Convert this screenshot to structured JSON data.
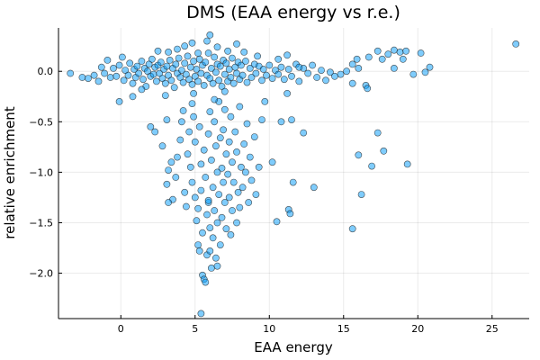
{
  "chart_data": {
    "type": "scatter",
    "title": "DMS (EAA energy vs r.e.)",
    "xlabel": "EAA energy",
    "ylabel": "relative enrichment",
    "xlim": [
      -4.2,
      27.5
    ],
    "ylim": [
      -2.45,
      0.43
    ],
    "xticks": [
      0,
      5,
      10,
      15,
      20,
      25
    ],
    "xtick_labels": [
      "0",
      "5",
      "10",
      "15",
      "20",
      "25"
    ],
    "yticks": [
      0.0,
      -0.5,
      -1.0,
      -1.5,
      -2.0
    ],
    "ytick_labels": [
      "0.0",
      "−0.5",
      "−1.0",
      "−1.5",
      "−2.0"
    ],
    "grid": true,
    "legend": "none",
    "point_color": "#009AFA",
    "point_stroke": "#1a1a1a",
    "series": [
      {
        "points": [
          [
            -3.4,
            -0.02
          ],
          [
            -2.6,
            -0.06
          ],
          [
            -2.2,
            -0.07
          ],
          [
            -1.8,
            -0.04
          ],
          [
            -1.5,
            -0.1
          ],
          [
            -1.3,
            0.04
          ],
          [
            -1.1,
            -0.02
          ],
          [
            -0.9,
            0.11
          ],
          [
            -0.7,
            -0.06
          ],
          [
            -0.5,
            0.03
          ],
          [
            -0.3,
            -0.05
          ],
          [
            -0.1,
            0.06
          ],
          [
            0.1,
            0.14
          ],
          [
            0.2,
            -0.09
          ],
          [
            0.3,
            0.01
          ],
          [
            0.5,
            -0.04
          ],
          [
            0.6,
            0.08
          ],
          [
            0.8,
            -0.12
          ],
          [
            0.9,
            0.02
          ],
          [
            1.0,
            -0.06
          ],
          [
            1.1,
            0.05
          ],
          [
            1.2,
            -0.02
          ],
          [
            1.4,
            0.1
          ],
          [
            1.5,
            -0.08
          ],
          [
            1.6,
            0.03
          ],
          [
            1.7,
            -0.15
          ],
          [
            1.8,
            0.0
          ],
          [
            1.9,
            0.07
          ],
          [
            2.0,
            -0.05
          ],
          [
            2.1,
            0.12
          ],
          [
            2.2,
            -0.03
          ],
          [
            2.3,
            0.04
          ],
          [
            2.4,
            -0.1
          ],
          [
            2.5,
            0.06
          ],
          [
            2.6,
            -0.02
          ],
          [
            2.7,
            0.09
          ],
          [
            2.8,
            -0.07
          ],
          [
            2.9,
            0.02
          ],
          [
            3.0,
            -0.12
          ],
          [
            3.1,
            0.05
          ],
          [
            3.2,
            -0.04
          ],
          [
            3.3,
            0.11
          ],
          [
            3.4,
            -0.09
          ],
          [
            3.5,
            0.03
          ],
          [
            3.6,
            -0.16
          ],
          [
            3.7,
            0.07
          ],
          [
            3.8,
            -0.02
          ],
          [
            3.9,
            0.13
          ],
          [
            4.0,
            -0.06
          ],
          [
            4.1,
            0.01
          ],
          [
            4.2,
            -0.11
          ],
          [
            4.3,
            0.08
          ],
          [
            4.4,
            -0.03
          ],
          [
            4.5,
            0.15
          ],
          [
            4.6,
            -0.08
          ],
          [
            4.7,
            0.04
          ],
          [
            4.8,
            -0.13
          ],
          [
            4.9,
            0.1
          ],
          [
            5.0,
            -0.05
          ],
          [
            5.1,
            0.02
          ],
          [
            5.2,
            -0.1
          ],
          [
            5.3,
            0.12
          ],
          [
            5.4,
            -0.02
          ],
          [
            5.5,
            0.06
          ],
          [
            5.6,
            -0.14
          ],
          [
            5.7,
            0.09
          ],
          [
            5.8,
            -0.04
          ],
          [
            5.9,
            0.18
          ],
          [
            6.0,
            -0.07
          ],
          [
            6.1,
            0.03
          ],
          [
            6.2,
            -0.12
          ],
          [
            6.3,
            0.14
          ],
          [
            6.4,
            -0.01
          ],
          [
            6.5,
            0.07
          ],
          [
            6.6,
            -0.09
          ],
          [
            6.7,
            0.05
          ],
          [
            6.8,
            -0.15
          ],
          [
            6.9,
            0.11
          ],
          [
            7.0,
            -0.03
          ],
          [
            7.1,
            0.08
          ],
          [
            7.2,
            -0.1
          ],
          [
            7.3,
            0.02
          ],
          [
            7.4,
            -0.06
          ],
          [
            7.5,
            0.13
          ],
          [
            7.6,
            -0.12
          ],
          [
            7.7,
            0.04
          ],
          [
            7.8,
            -0.02
          ],
          [
            7.9,
            0.09
          ],
          [
            8.0,
            -0.08
          ],
          [
            8.1,
            0.06
          ],
          [
            8.2,
            -0.04
          ],
          [
            8.4,
            0.1
          ],
          [
            8.5,
            -0.11
          ],
          [
            8.7,
            0.03
          ],
          [
            8.8,
            -0.06
          ],
          [
            9.0,
            0.07
          ],
          [
            9.1,
            -0.02
          ],
          [
            9.3,
            0.05
          ],
          [
            9.5,
            -0.09
          ],
          [
            9.6,
            0.02
          ],
          [
            9.8,
            -0.04
          ],
          [
            10.0,
            0.06
          ],
          [
            10.2,
            -0.07
          ],
          [
            10.4,
            0.01
          ],
          [
            10.6,
            -0.03
          ],
          [
            10.8,
            0.04
          ],
          [
            11.0,
            -0.08
          ],
          [
            11.3,
            0.02
          ],
          [
            11.5,
            -0.05
          ],
          [
            11.8,
            0.07
          ],
          [
            12.0,
            -0.1
          ],
          [
            12.3,
            0.03
          ],
          [
            12.6,
            -0.02
          ],
          [
            12.9,
            0.06
          ],
          [
            13.2,
            -0.06
          ],
          [
            13.5,
            0.01
          ],
          [
            13.8,
            -0.09
          ],
          [
            14.1,
            -0.01
          ],
          [
            14.4,
            -0.05
          ],
          [
            14.8,
            -0.03
          ],
          [
            15.2,
            0.0
          ],
          [
            15.6,
            0.07
          ],
          [
            16.0,
            0.03
          ],
          [
            16.5,
            -0.14
          ],
          [
            2.5,
            0.2
          ],
          [
            3.2,
            0.19
          ],
          [
            3.8,
            0.22
          ],
          [
            4.3,
            0.25
          ],
          [
            4.8,
            0.28
          ],
          [
            5.2,
            0.18
          ],
          [
            5.8,
            0.3
          ],
          [
            6.0,
            0.36
          ],
          [
            6.5,
            0.24
          ],
          [
            7.2,
            0.2
          ],
          [
            7.8,
            0.27
          ],
          [
            8.3,
            0.19
          ],
          [
            9.2,
            0.15
          ],
          [
            10.6,
            0.12
          ],
          [
            11.2,
            0.16
          ],
          [
            12.0,
            0.04
          ],
          [
            15.9,
            0.12
          ],
          [
            16.7,
            0.14
          ],
          [
            17.3,
            0.2
          ],
          [
            17.6,
            0.12
          ],
          [
            18.0,
            0.17
          ],
          [
            18.4,
            0.21
          ],
          [
            18.8,
            0.19
          ],
          [
            19.2,
            0.2
          ],
          [
            19.0,
            0.12
          ],
          [
            19.7,
            -0.03
          ],
          [
            20.2,
            0.18
          ],
          [
            20.5,
            -0.01
          ],
          [
            20.8,
            0.04
          ],
          [
            18.4,
            0.03
          ],
          [
            26.6,
            0.27
          ],
          [
            16.6,
            -0.17
          ],
          [
            15.6,
            -0.12
          ],
          [
            -0.1,
            -0.3
          ],
          [
            0.8,
            -0.25
          ],
          [
            1.4,
            -0.18
          ],
          [
            2.0,
            -0.55
          ],
          [
            2.3,
            -0.6
          ],
          [
            2.8,
            -0.74
          ],
          [
            3.0,
            -0.24
          ],
          [
            3.1,
            -0.48
          ],
          [
            3.2,
            -0.98
          ],
          [
            3.4,
            -0.9
          ],
          [
            3.1,
            -1.12
          ],
          [
            3.5,
            -1.27
          ],
          [
            3.2,
            -1.3
          ],
          [
            3.7,
            -1.05
          ],
          [
            3.8,
            -0.85
          ],
          [
            4.0,
            -0.68
          ],
          [
            4.1,
            -0.5
          ],
          [
            4.2,
            -0.39
          ],
          [
            4.3,
            -1.2
          ],
          [
            4.4,
            -1.34
          ],
          [
            4.5,
            -0.82
          ],
          [
            4.6,
            -0.6
          ],
          [
            4.7,
            -0.95
          ],
          [
            4.8,
            -1.1
          ],
          [
            4.8,
            -0.32
          ],
          [
            4.9,
            -0.45
          ],
          [
            5.0,
            -0.7
          ],
          [
            5.0,
            -1.25
          ],
          [
            5.1,
            -1.48
          ],
          [
            5.2,
            -1.36
          ],
          [
            5.2,
            -1.72
          ],
          [
            5.3,
            -1.78
          ],
          [
            5.3,
            -0.55
          ],
          [
            5.4,
            -0.92
          ],
          [
            5.4,
            -1.18
          ],
          [
            5.5,
            -1.6
          ],
          [
            5.5,
            -2.02
          ],
          [
            5.6,
            -2.06
          ],
          [
            5.7,
            -2.09
          ],
          [
            5.4,
            -2.4
          ],
          [
            5.6,
            -0.78
          ],
          [
            5.7,
            -1.05
          ],
          [
            5.8,
            -1.42
          ],
          [
            5.8,
            -1.82
          ],
          [
            5.9,
            -0.62
          ],
          [
            5.9,
            -1.3
          ],
          [
            6.0,
            -1.55
          ],
          [
            6.0,
            -0.4
          ],
          [
            6.1,
            -0.88
          ],
          [
            6.1,
            -1.95
          ],
          [
            6.2,
            -1.15
          ],
          [
            6.2,
            -1.65
          ],
          [
            6.3,
            -0.5
          ],
          [
            6.3,
            -1.38
          ],
          [
            6.4,
            -0.74
          ],
          [
            6.4,
            -1.85
          ],
          [
            6.5,
            -1.0
          ],
          [
            6.5,
            -1.5
          ],
          [
            6.6,
            -0.3
          ],
          [
            6.6,
            -1.22
          ],
          [
            6.7,
            -0.66
          ],
          [
            6.7,
            -1.72
          ],
          [
            6.8,
            -0.96
          ],
          [
            6.8,
            -1.45
          ],
          [
            6.9,
            -0.58
          ],
          [
            6.9,
            -1.1
          ],
          [
            7.0,
            -1.3
          ],
          [
            7.0,
            -0.38
          ],
          [
            7.1,
            -0.82
          ],
          [
            7.1,
            -1.56
          ],
          [
            7.2,
            -1.02
          ],
          [
            7.3,
            -0.7
          ],
          [
            7.3,
            -1.25
          ],
          [
            7.4,
            -0.45
          ],
          [
            7.4,
            -1.62
          ],
          [
            7.5,
            -0.9
          ],
          [
            7.5,
            -1.38
          ],
          [
            7.6,
            -1.1
          ],
          [
            7.7,
            -0.6
          ],
          [
            7.8,
            -1.5
          ],
          [
            7.8,
            -0.8
          ],
          [
            7.9,
            -1.2
          ],
          [
            8.0,
            -0.35
          ],
          [
            8.0,
            -1.35
          ],
          [
            8.1,
            -0.95
          ],
          [
            8.2,
            -1.15
          ],
          [
            8.3,
            -0.72
          ],
          [
            8.4,
            -1.0
          ],
          [
            8.5,
            -0.52
          ],
          [
            8.6,
            -1.3
          ],
          [
            8.7,
            -0.85
          ],
          [
            8.8,
            -1.08
          ],
          [
            9.0,
            -0.65
          ],
          [
            9.1,
            -1.22
          ],
          [
            9.3,
            -0.95
          ],
          [
            9.5,
            -0.48
          ],
          [
            9.7,
            -0.3
          ],
          [
            10.2,
            -0.9
          ],
          [
            10.5,
            -1.49
          ],
          [
            10.8,
            -0.5
          ],
          [
            11.2,
            -0.22
          ],
          [
            11.3,
            -1.37
          ],
          [
            11.4,
            -1.41
          ],
          [
            11.5,
            -0.48
          ],
          [
            11.6,
            -1.1
          ],
          [
            12.3,
            -0.61
          ],
          [
            13.0,
            -1.15
          ],
          [
            15.6,
            -1.56
          ],
          [
            16.0,
            -0.83
          ],
          [
            16.2,
            -1.22
          ],
          [
            16.9,
            -0.94
          ],
          [
            17.3,
            -0.61
          ],
          [
            17.7,
            -0.79
          ],
          [
            19.3,
            -0.92
          ],
          [
            6.0,
            -1.78
          ],
          [
            6.5,
            -1.93
          ],
          [
            5.9,
            -1.28
          ],
          [
            6.3,
            -0.28
          ],
          [
            7.0,
            -0.2
          ],
          [
            4.9,
            -0.22
          ]
        ]
      }
    ]
  }
}
